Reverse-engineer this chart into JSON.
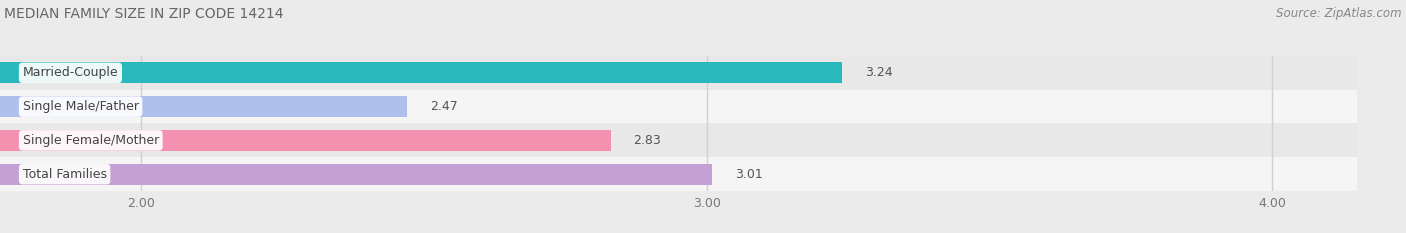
{
  "title": "MEDIAN FAMILY SIZE IN ZIP CODE 14214",
  "source": "Source: ZipAtlas.com",
  "categories": [
    "Married-Couple",
    "Single Male/Father",
    "Single Female/Mother",
    "Total Families"
  ],
  "values": [
    3.24,
    2.47,
    2.83,
    3.01
  ],
  "bar_colors": [
    "#29b9bc",
    "#b0c0ed",
    "#f490b0",
    "#c4a0d4"
  ],
  "xlim_left": 1.75,
  "xlim_right": 4.15,
  "xticks": [
    2.0,
    3.0,
    4.0
  ],
  "xtick_labels": [
    "2.00",
    "3.00",
    "4.00"
  ],
  "title_fontsize": 10,
  "source_fontsize": 8.5,
  "bar_label_fontsize": 9,
  "category_fontsize": 9,
  "background_color": "#ebebeb",
  "row_bg_even": "#f5f5f5",
  "row_bg_odd": "#e8e8e8",
  "grid_color": "#d0d0d0",
  "bar_height": 0.62,
  "value_label_color": "#555555",
  "title_color": "#666666",
  "source_color": "#888888",
  "tick_color": "#777777"
}
